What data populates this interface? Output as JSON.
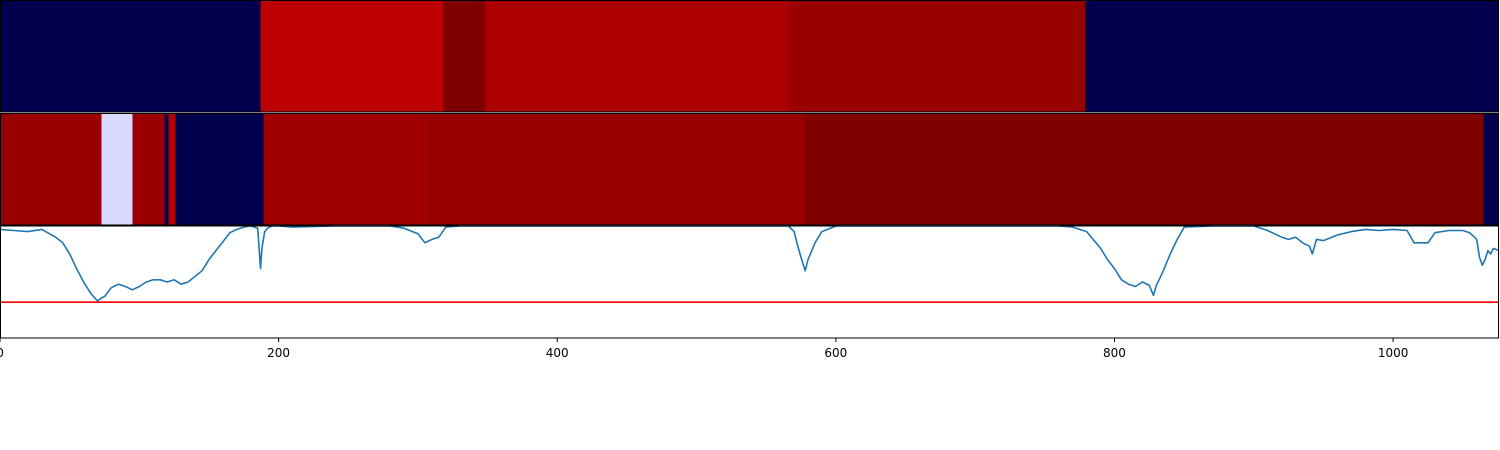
{
  "chart_data": [
    {
      "type": "heatmap",
      "panel": "segments-top",
      "xlim": [
        0,
        1076
      ],
      "segments": [
        {
          "start": 0,
          "end": 187,
          "color": "#00004c"
        },
        {
          "start": 187,
          "end": 318,
          "color": "#bd0000"
        },
        {
          "start": 318,
          "end": 348,
          "color": "#800000"
        },
        {
          "start": 348,
          "end": 566,
          "color": "#aa0000"
        },
        {
          "start": 566,
          "end": 779,
          "color": "#990000"
        },
        {
          "start": 779,
          "end": 1076,
          "color": "#00004c"
        }
      ]
    },
    {
      "type": "heatmap",
      "panel": "segments-middle",
      "xlim": [
        0,
        1076
      ],
      "segments": [
        {
          "start": 0,
          "end": 73,
          "color": "#9b0000"
        },
        {
          "start": 73,
          "end": 95,
          "color": "#d9d9ff"
        },
        {
          "start": 95,
          "end": 118,
          "color": "#9b0000"
        },
        {
          "start": 118,
          "end": 121,
          "color": "#00004c"
        },
        {
          "start": 121,
          "end": 126,
          "color": "#b30000"
        },
        {
          "start": 126,
          "end": 189,
          "color": "#00004c"
        },
        {
          "start": 189,
          "end": 306,
          "color": "#a00000"
        },
        {
          "start": 306,
          "end": 578,
          "color": "#980000"
        },
        {
          "start": 578,
          "end": 1065,
          "color": "#800000"
        },
        {
          "start": 1065,
          "end": 1076,
          "color": "#00004c"
        }
      ]
    },
    {
      "type": "line",
      "panel": "signal",
      "xlim": [
        0,
        1076
      ],
      "ylim": [
        0,
        1
      ],
      "series": [
        {
          "color": "#1f77b4",
          "x": [
            0,
            10,
            20,
            30,
            40,
            45,
            50,
            55,
            60,
            65,
            70,
            73,
            75,
            80,
            85,
            90,
            95,
            100,
            105,
            110,
            115,
            120,
            125,
            130,
            135,
            140,
            145,
            150,
            155,
            160,
            165,
            170,
            175,
            180,
            185,
            187,
            188,
            190,
            192,
            195,
            200,
            210,
            240,
            280,
            290,
            300,
            305,
            310,
            315,
            320,
            330,
            400,
            500,
            560,
            566,
            570,
            572,
            575,
            578,
            580,
            585,
            590,
            600,
            650,
            700,
            750,
            760,
            770,
            780,
            790,
            795,
            800,
            805,
            810,
            815,
            820,
            825,
            828,
            830,
            832,
            835,
            840,
            845,
            850,
            870,
            900,
            910,
            920,
            925,
            930,
            935,
            940,
            942,
            945,
            950,
            960,
            970,
            980,
            990,
            1000,
            1010,
            1015,
            1020,
            1025,
            1030,
            1040,
            1050,
            1055,
            1060,
            1062,
            1064,
            1066,
            1068,
            1070,
            1072,
            1076
          ],
          "y": [
            0.97,
            0.96,
            0.95,
            0.97,
            0.9,
            0.85,
            0.75,
            0.62,
            0.5,
            0.4,
            0.33,
            0.36,
            0.37,
            0.45,
            0.48,
            0.46,
            0.43,
            0.46,
            0.5,
            0.52,
            0.52,
            0.5,
            0.52,
            0.48,
            0.5,
            0.55,
            0.6,
            0.7,
            0.78,
            0.86,
            0.94,
            0.97,
            0.99,
            1.0,
            0.98,
            0.62,
            0.8,
            0.95,
            0.98,
            1.0,
            1.0,
            0.99,
            1.0,
            1.0,
            0.98,
            0.93,
            0.85,
            0.88,
            0.9,
            0.99,
            1.0,
            1.0,
            1.0,
            1.0,
            1.0,
            0.95,
            0.85,
            0.72,
            0.6,
            0.7,
            0.85,
            0.95,
            1.0,
            1.0,
            1.0,
            1.0,
            1.0,
            0.99,
            0.95,
            0.8,
            0.7,
            0.62,
            0.52,
            0.48,
            0.46,
            0.5,
            0.47,
            0.38,
            0.47,
            0.52,
            0.6,
            0.75,
            0.88,
            0.99,
            1.0,
            1.0,
            0.96,
            0.9,
            0.88,
            0.9,
            0.85,
            0.82,
            0.75,
            0.88,
            0.87,
            0.92,
            0.95,
            0.97,
            0.96,
            0.97,
            0.96,
            0.85,
            0.85,
            0.85,
            0.94,
            0.96,
            0.96,
            0.94,
            0.88,
            0.72,
            0.65,
            0.7,
            0.78,
            0.75,
            0.8,
            0.78
          ]
        },
        {
          "color": "#ff0000",
          "x": [
            0,
            1076
          ],
          "y": [
            0.32,
            0.32
          ]
        }
      ]
    }
  ],
  "xaxis": {
    "ticks": [
      0,
      200,
      400,
      600,
      800,
      1000
    ],
    "tick_labels": [
      "0",
      "200",
      "400",
      "600",
      "800",
      "1000"
    ]
  }
}
